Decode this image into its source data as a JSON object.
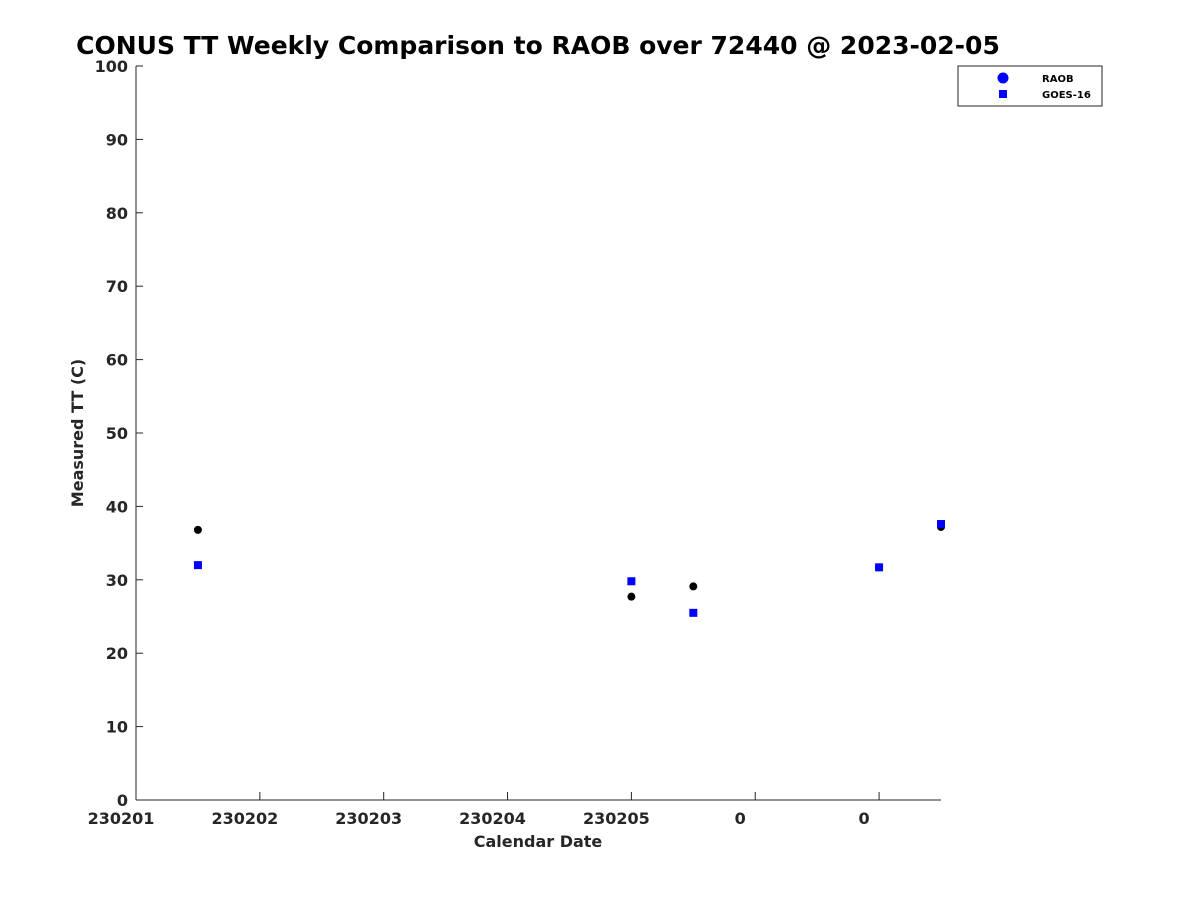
{
  "chart_data": {
    "type": "scatter",
    "title": "CONUS TT Weekly Comparison to RAOB over 72440 @ 2023-02-05",
    "xlabel": "Calendar Date",
    "ylabel": "Measured TT (C)",
    "ylim": [
      0,
      100
    ],
    "yticks": [
      "0",
      "10",
      "20",
      "30",
      "40",
      "50",
      "60",
      "70",
      "80",
      "90",
      "100"
    ],
    "xticks": [
      "230201",
      "230202",
      "230203",
      "230204",
      "230205",
      "0",
      "0"
    ],
    "xlim": [
      0,
      6.5
    ],
    "grid": false,
    "legend_position": "top-right",
    "series": [
      {
        "name": "RAOB",
        "marker": "circle",
        "color": "#000000",
        "legend_color": "#0000ff",
        "x": [
          0.5,
          4.0,
          4.5,
          6.0,
          6.5
        ],
        "y": [
          36.8,
          27.7,
          29.1,
          31.7,
          37.2
        ]
      },
      {
        "name": "GOES-16",
        "marker": "square",
        "color": "#0000ff",
        "legend_color": "#0000ff",
        "x": [
          0.5,
          4.0,
          4.5,
          6.0,
          6.5
        ],
        "y": [
          32.0,
          29.8,
          25.5,
          31.7,
          37.6
        ]
      }
    ]
  }
}
